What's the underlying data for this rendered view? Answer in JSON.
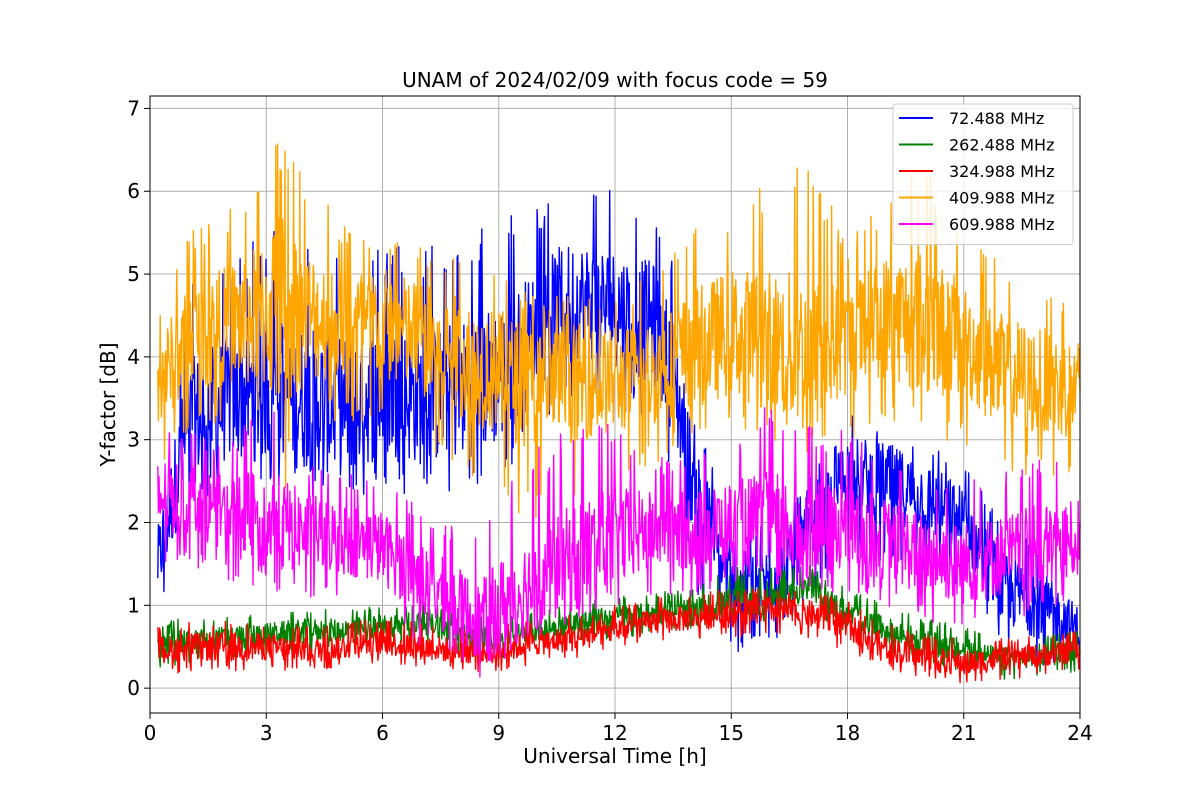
{
  "chart_data": {
    "type": "line",
    "title": "UNAM of 2024/02/09 with focus code = 59",
    "xlabel": "Universal Time [h]",
    "ylabel": "Y-factor [dB]",
    "xlim": [
      0,
      24
    ],
    "ylim": [
      -0.3,
      7.15
    ],
    "xticks": [
      0,
      3,
      6,
      9,
      12,
      15,
      18,
      21,
      24
    ],
    "yticks": [
      0,
      1,
      2,
      3,
      4,
      5,
      6,
      7
    ],
    "grid": true,
    "legend_position": "top-right",
    "series": [
      {
        "name": " 72.488 MHz",
        "color": "#0000ff",
        "x": [
          0.2,
          1,
          2,
          3,
          4,
          5,
          6,
          7,
          8,
          9,
          10,
          10.5,
          11,
          12,
          13,
          13.5,
          14,
          15,
          16,
          17,
          18,
          19,
          20,
          21,
          22,
          23,
          24
        ],
        "y": [
          1.5,
          3.2,
          3.5,
          3.6,
          3.5,
          3.4,
          3.6,
          3.5,
          3.6,
          3.8,
          4.3,
          4.6,
          4.7,
          4.6,
          4.4,
          3.8,
          2.5,
          1.2,
          1.3,
          1.8,
          2.6,
          2.5,
          2.3,
          2.0,
          1.2,
          1.0,
          0.7
        ],
        "min": [
          0.8,
          2.2,
          2.4,
          2.5,
          2.3,
          2.2,
          2.4,
          2.3,
          2.4,
          2.5,
          3.0,
          3.4,
          3.5,
          3.4,
          3.2,
          2.6,
          1.2,
          0.4,
          0.5,
          1.0,
          1.6,
          1.5,
          1.4,
          1.2,
          0.4,
          0.2,
          0.2
        ],
        "max": [
          2.4,
          5.0,
          5.2,
          5.6,
          5.5,
          5.3,
          5.4,
          5.3,
          5.5,
          5.7,
          5.8,
          6.0,
          6.1,
          6.0,
          5.9,
          5.3,
          3.5,
          1.9,
          2.0,
          2.5,
          3.3,
          3.2,
          3.0,
          2.8,
          2.0,
          1.7,
          1.2
        ]
      },
      {
        "name": "262.488 MHz",
        "color": "#008000",
        "x": [
          0.2,
          1,
          2,
          3,
          4,
          5,
          6,
          7,
          8,
          9,
          10,
          11,
          12,
          13,
          14,
          15,
          16,
          17,
          18,
          19,
          20,
          21,
          22,
          23,
          24
        ],
        "y": [
          0.5,
          0.55,
          0.6,
          0.65,
          0.7,
          0.7,
          0.75,
          0.8,
          0.65,
          0.6,
          0.7,
          0.8,
          0.85,
          0.9,
          0.95,
          1.0,
          1.1,
          1.2,
          0.9,
          0.7,
          0.55,
          0.45,
          0.35,
          0.4,
          0.45
        ],
        "min": [
          0.2,
          0.3,
          0.35,
          0.4,
          0.45,
          0.45,
          0.5,
          0.55,
          0.4,
          0.35,
          0.45,
          0.55,
          0.6,
          0.65,
          0.7,
          0.7,
          0.8,
          0.9,
          0.6,
          0.45,
          0.3,
          0.2,
          0.1,
          0.15,
          0.2
        ],
        "max": [
          0.8,
          0.85,
          0.9,
          0.9,
          0.95,
          0.95,
          1.0,
          1.05,
          0.9,
          0.85,
          0.95,
          1.05,
          1.1,
          1.15,
          1.2,
          1.45,
          1.5,
          1.5,
          1.2,
          1.0,
          0.85,
          0.75,
          0.6,
          0.65,
          0.7
        ]
      },
      {
        "name": "324.988 MHz",
        "color": "#ff0000",
        "x": [
          0.2,
          1,
          2,
          3,
          4,
          5,
          6,
          7,
          8,
          9,
          10,
          11,
          12,
          13,
          14,
          15,
          16,
          17,
          18,
          19,
          20,
          21,
          22,
          23,
          24
        ],
        "y": [
          0.45,
          0.5,
          0.5,
          0.5,
          0.45,
          0.5,
          0.55,
          0.5,
          0.45,
          0.45,
          0.55,
          0.6,
          0.7,
          0.8,
          0.85,
          0.9,
          0.95,
          0.9,
          0.75,
          0.5,
          0.35,
          0.3,
          0.35,
          0.4,
          0.45
        ],
        "min": [
          0.15,
          0.2,
          0.2,
          0.2,
          0.2,
          0.25,
          0.3,
          0.25,
          0.2,
          0.2,
          0.3,
          0.35,
          0.45,
          0.55,
          0.6,
          0.6,
          0.65,
          0.6,
          0.45,
          0.25,
          0.1,
          0.05,
          0.1,
          0.15,
          0.2
        ],
        "max": [
          0.75,
          0.8,
          0.85,
          0.8,
          0.75,
          0.8,
          0.85,
          0.8,
          0.75,
          0.75,
          0.85,
          0.9,
          1.0,
          1.1,
          1.15,
          1.2,
          1.25,
          1.2,
          1.05,
          0.8,
          0.65,
          0.6,
          0.6,
          0.65,
          0.7
        ]
      },
      {
        "name": "409.988 MHz",
        "color": "#ffa500",
        "x": [
          0.2,
          1,
          2,
          3,
          3.3,
          4,
          5,
          6,
          7,
          8,
          9,
          10,
          11,
          12,
          13,
          14,
          15,
          16,
          17,
          18,
          19,
          20,
          21,
          22,
          23,
          24
        ],
        "y": [
          3.7,
          4.2,
          4.4,
          4.5,
          4.6,
          4.5,
          4.4,
          4.4,
          4.2,
          4.0,
          3.8,
          3.6,
          3.7,
          3.7,
          3.8,
          4.1,
          4.3,
          4.2,
          4.0,
          4.2,
          4.5,
          4.4,
          4.2,
          3.8,
          3.7,
          3.6
        ],
        "min": [
          2.6,
          3.1,
          3.2,
          3.2,
          2.0,
          3.3,
          3.2,
          3.1,
          2.8,
          2.6,
          2.2,
          2.0,
          2.2,
          2.5,
          2.7,
          3.0,
          3.1,
          3.0,
          2.8,
          3.0,
          3.2,
          3.1,
          2.9,
          2.6,
          2.5,
          2.5
        ],
        "max": [
          4.5,
          5.5,
          5.8,
          6.6,
          6.8,
          6.3,
          5.6,
          5.6,
          5.4,
          5.2,
          5.0,
          4.7,
          4.8,
          4.8,
          5.0,
          5.6,
          5.9,
          6.1,
          6.5,
          5.4,
          5.9,
          6.4,
          5.4,
          5.2,
          4.9,
          4.7
        ]
      },
      {
        "name": "609.988 MHz",
        "color": "#ff00ff",
        "x": [
          0.2,
          1,
          2,
          3,
          4,
          5,
          6,
          7,
          8,
          8.5,
          9,
          10,
          11,
          12,
          13,
          14,
          15,
          16,
          17,
          18,
          19,
          20,
          21,
          22,
          23,
          24
        ],
        "y": [
          2.3,
          2.3,
          2.1,
          2.0,
          1.9,
          1.8,
          1.7,
          1.3,
          1.0,
          0.8,
          1.0,
          1.3,
          1.6,
          1.8,
          1.9,
          1.9,
          2.0,
          2.0,
          1.9,
          1.9,
          1.8,
          1.6,
          1.5,
          1.6,
          1.7,
          1.8
        ],
        "min": [
          1.5,
          1.5,
          1.3,
          1.2,
          1.1,
          1.0,
          0.9,
          0.5,
          0.3,
          0.1,
          0.3,
          0.6,
          0.8,
          1.0,
          1.1,
          1.1,
          1.2,
          1.2,
          1.1,
          1.1,
          1.0,
          0.8,
          0.7,
          0.8,
          0.9,
          1.0
        ],
        "max": [
          3.3,
          3.1,
          2.9,
          3.6,
          2.8,
          2.6,
          2.5,
          2.2,
          1.9,
          1.8,
          2.3,
          2.9,
          3.2,
          3.3,
          2.8,
          2.8,
          3.0,
          3.5,
          3.2,
          3.1,
          2.8,
          2.6,
          2.5,
          2.6,
          2.8,
          2.7
        ]
      }
    ]
  }
}
